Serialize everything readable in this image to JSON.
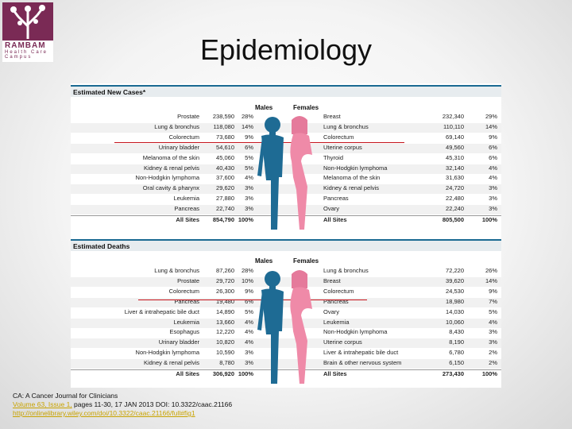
{
  "slide": {
    "title": "Epidemiology"
  },
  "logo": {
    "name": "RAMBAM",
    "sub": "Health Care Campus"
  },
  "figure": {
    "new_cases": {
      "heading": "Estimated New Cases*",
      "males_label": "Males",
      "females_label": "Females",
      "males": [
        {
          "site": "Prostate",
          "value": "238,590",
          "pct": "28%"
        },
        {
          "site": "Lung & bronchus",
          "value": "118,080",
          "pct": "14%"
        },
        {
          "site": "Colorectum",
          "value": "73,680",
          "pct": "9%"
        },
        {
          "site": "Urinary bladder",
          "value": "54,610",
          "pct": "6%"
        },
        {
          "site": "Melanoma of the skin",
          "value": "45,060",
          "pct": "5%"
        },
        {
          "site": "Kidney & renal pelvis",
          "value": "40,430",
          "pct": "5%"
        },
        {
          "site": "Non-Hodgkin lymphoma",
          "value": "37,600",
          "pct": "4%"
        },
        {
          "site": "Oral cavity & pharynx",
          "value": "29,620",
          "pct": "3%"
        },
        {
          "site": "Leukemia",
          "value": "27,880",
          "pct": "3%"
        },
        {
          "site": "Pancreas",
          "value": "22,740",
          "pct": "3%"
        },
        {
          "site": "All Sites",
          "value": "854,790",
          "pct": "100%"
        }
      ],
      "females": [
        {
          "site": "Breast",
          "value": "232,340",
          "pct": "29%"
        },
        {
          "site": "Lung & bronchus",
          "value": "110,110",
          "pct": "14%"
        },
        {
          "site": "Colorectum",
          "value": "69,140",
          "pct": "9%"
        },
        {
          "site": "Uterine corpus",
          "value": "49,560",
          "pct": "6%"
        },
        {
          "site": "Thyroid",
          "value": "45,310",
          "pct": "6%"
        },
        {
          "site": "Non-Hodgkin lymphoma",
          "value": "32,140",
          "pct": "4%"
        },
        {
          "site": "Melanoma of the skin",
          "value": "31,630",
          "pct": "4%"
        },
        {
          "site": "Kidney & renal pelvis",
          "value": "24,720",
          "pct": "3%"
        },
        {
          "site": "Pancreas",
          "value": "22,480",
          "pct": "3%"
        },
        {
          "site": "Ovary",
          "value": "22,240",
          "pct": "3%"
        },
        {
          "site": "All Sites",
          "value": "805,500",
          "pct": "100%"
        }
      ]
    },
    "deaths": {
      "heading": "Estimated Deaths",
      "males_label": "Males",
      "females_label": "Females",
      "males": [
        {
          "site": "Lung & bronchus",
          "value": "87,260",
          "pct": "28%"
        },
        {
          "site": "Prostate",
          "value": "29,720",
          "pct": "10%"
        },
        {
          "site": "Colorectum",
          "value": "26,300",
          "pct": "9%"
        },
        {
          "site": "Pancreas",
          "value": "19,480",
          "pct": "6%"
        },
        {
          "site": "Liver & intrahepatic bile duct",
          "value": "14,890",
          "pct": "5%"
        },
        {
          "site": "Leukemia",
          "value": "13,660",
          "pct": "4%"
        },
        {
          "site": "Esophagus",
          "value": "12,220",
          "pct": "4%"
        },
        {
          "site": "Urinary bladder",
          "value": "10,820",
          "pct": "4%"
        },
        {
          "site": "Non-Hodgkin lymphoma",
          "value": "10,590",
          "pct": "3%"
        },
        {
          "site": "Kidney & renal pelvis",
          "value": "8,780",
          "pct": "3%"
        },
        {
          "site": "All Sites",
          "value": "306,920",
          "pct": "100%"
        }
      ],
      "females": [
        {
          "site": "Lung & bronchus",
          "value": "72,220",
          "pct": "26%"
        },
        {
          "site": "Breast",
          "value": "39,620",
          "pct": "14%"
        },
        {
          "site": "Colorectum",
          "value": "24,530",
          "pct": "9%"
        },
        {
          "site": "Pancreas",
          "value": "18,980",
          "pct": "7%"
        },
        {
          "site": "Ovary",
          "value": "14,030",
          "pct": "5%"
        },
        {
          "site": "Leukemia",
          "value": "10,060",
          "pct": "4%"
        },
        {
          "site": "Non-Hodgkin lymphoma",
          "value": "8,430",
          "pct": "3%"
        },
        {
          "site": "Uterine corpus",
          "value": "8,190",
          "pct": "3%"
        },
        {
          "site": "Liver & intrahepatic bile duct",
          "value": "6,780",
          "pct": "2%"
        },
        {
          "site": "Brain & other nervous system",
          "value": "6,150",
          "pct": "2%"
        },
        {
          "site": "All Sites",
          "value": "273,430",
          "pct": "100%"
        }
      ]
    }
  },
  "citation": {
    "line1": "CA: A Cancer Journal for Clinicians",
    "volume_link": "Volume 63, Issue 1,",
    "line2_rest": " pages 11-30, 17 JAN 2013 DOI: 10.3322/caac.21166",
    "url": "http://onlinelibrary.wiley.com/doi/10.3322/caac.21166/full#fig1"
  },
  "colors": {
    "male": "#1e6b94",
    "female": "#ef8aa8",
    "highlight": "#c4121a",
    "rule": "#1a6a92"
  }
}
